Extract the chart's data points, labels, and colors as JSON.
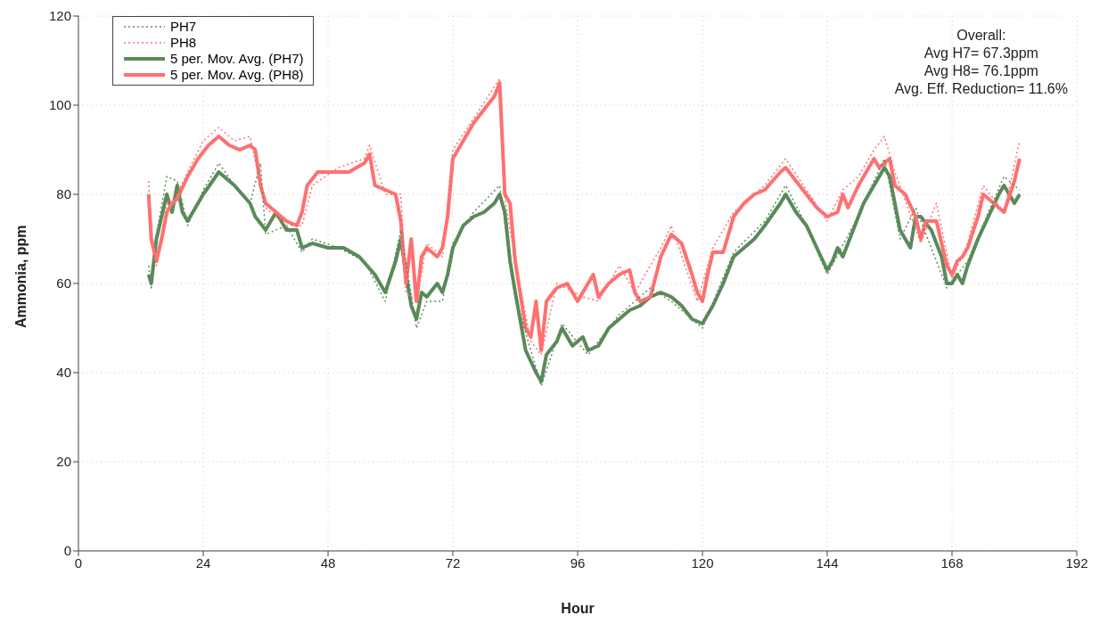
{
  "chart_data": {
    "type": "line",
    "xlabel": "Hour",
    "ylabel": "Ammonia, ppm",
    "xlim": [
      0,
      192
    ],
    "xticks": [
      0,
      24,
      48,
      72,
      96,
      120,
      144,
      168,
      192
    ],
    "ylim": [
      0,
      120
    ],
    "yticks": [
      0,
      20,
      40,
      60,
      80,
      100,
      120
    ],
    "grid": true,
    "legend": "top left",
    "annotations": [
      "Overall:",
      "Avg H7= 67.3ppm",
      "Avg H8= 76.1ppm",
      "Avg. Eff. Reduction= 11.6%"
    ],
    "series": [
      {
        "name": "PH7",
        "color": "#5a8a5a",
        "line_style": "dotted",
        "x": [
          13.5,
          14,
          15,
          17,
          19,
          21,
          24,
          27,
          30,
          33,
          35,
          36,
          40,
          43,
          45,
          50,
          55,
          59,
          62,
          65,
          67,
          70,
          72,
          76,
          81,
          84,
          89,
          93,
          98,
          104,
          110,
          114,
          120,
          126,
          132,
          136,
          140,
          144,
          149,
          155,
          158,
          161,
          167,
          171,
          175,
          178,
          181
        ],
        "values": [
          64,
          59,
          71,
          84,
          83,
          73,
          81,
          87,
          82,
          78,
          87,
          71,
          73,
          67,
          70,
          68,
          65,
          56,
          72,
          50,
          56,
          56,
          69,
          76,
          82,
          57,
          37,
          51,
          44,
          53,
          59,
          56,
          50,
          67,
          74,
          82,
          73,
          62,
          73,
          88,
          70,
          77,
          59,
          65,
          76,
          84,
          81
        ]
      },
      {
        "name": "PH8",
        "color": "#ff7070",
        "line_style": "dotted",
        "x": [
          13.5,
          14,
          15,
          17,
          19,
          21,
          24,
          27,
          30,
          33,
          35,
          36,
          40,
          43,
          45,
          50,
          55,
          56,
          59,
          62,
          63,
          65,
          67,
          70,
          72,
          76,
          81,
          82,
          84,
          87,
          89,
          92,
          97,
          100,
          104,
          107,
          112,
          114,
          119,
          122,
          126,
          132,
          136,
          140,
          144,
          147,
          150,
          153,
          155,
          157,
          162,
          165,
          168,
          171,
          174,
          178,
          181
        ],
        "values": [
          83,
          72,
          64,
          78,
          80,
          85,
          92,
          95,
          92,
          93,
          82,
          77,
          73,
          73,
          82,
          86,
          88,
          91,
          80,
          80,
          58,
          56,
          69,
          66,
          90,
          97,
          106,
          79,
          65,
          47,
          44,
          60,
          57,
          56,
          64,
          58,
          68,
          73,
          56,
          68,
          76,
          82,
          88,
          81,
          74,
          81,
          84,
          90,
          93,
          85,
          69,
          78,
          61,
          69,
          82,
          76,
          92
        ]
      },
      {
        "name": "5 per. Mov. Avg. (PH7)",
        "color": "#5a8a5a",
        "line_style": "solid",
        "x": [
          13.5,
          14,
          15,
          17,
          18,
          19,
          20,
          21,
          24,
          27,
          30,
          33,
          34,
          36,
          38,
          40,
          42,
          43,
          45,
          48,
          51,
          54,
          57,
          59,
          61,
          62,
          63,
          64,
          65,
          66,
          67,
          69,
          70,
          71,
          72,
          74,
          76,
          78,
          80,
          81,
          82,
          83,
          84,
          86,
          88,
          89,
          90,
          92,
          93,
          95,
          97,
          98,
          100,
          102,
          104,
          106,
          108,
          110,
          112,
          114,
          116,
          118,
          120,
          122,
          124,
          126,
          128,
          130,
          132,
          135,
          136,
          138,
          140,
          142,
          144,
          145,
          146,
          147,
          149,
          151,
          153,
          155,
          156,
          157,
          158,
          159,
          160,
          161,
          162,
          164,
          166,
          167,
          168,
          169,
          170,
          171,
          173,
          175,
          177,
          178,
          180,
          181
        ],
        "values": [
          62,
          60,
          70,
          80,
          76,
          82,
          76,
          74,
          80,
          85,
          82,
          78,
          75,
          72,
          76,
          72,
          72,
          68,
          69,
          68,
          68,
          66,
          62,
          58,
          65,
          70,
          62,
          55,
          52,
          58,
          57,
          60,
          58,
          62,
          68,
          73,
          75,
          76,
          78,
          80,
          76,
          65,
          58,
          45,
          40,
          38,
          44,
          47,
          50,
          46,
          48,
          45,
          46,
          50,
          52,
          54,
          55,
          57,
          58,
          57,
          55,
          52,
          51,
          55,
          60,
          66,
          68,
          70,
          73,
          78,
          80,
          76,
          73,
          68,
          63,
          65,
          68,
          66,
          72,
          78,
          82,
          86,
          84,
          78,
          72,
          70,
          68,
          75,
          75,
          72,
          66,
          60,
          60,
          62,
          60,
          64,
          70,
          75,
          80,
          82,
          78,
          80
        ]
      },
      {
        "name": "5 per. Mov. Avg. (PH8)",
        "color": "#ff7070",
        "line_style": "solid",
        "x": [
          13.5,
          14,
          15,
          16,
          17,
          18,
          19,
          21,
          23,
          25,
          27,
          29,
          31,
          33,
          34,
          35,
          36,
          38,
          40,
          42,
          43,
          44,
          46,
          49,
          52,
          55,
          56,
          57,
          59,
          61,
          62,
          63,
          64,
          65,
          66,
          67,
          69,
          70,
          71,
          72,
          74,
          76,
          78,
          80,
          81,
          82,
          83,
          84,
          86,
          87,
          88,
          89,
          90,
          92,
          94,
          96,
          97,
          99,
          100,
          102,
          104,
          106,
          107,
          108,
          110,
          112,
          114,
          116,
          118,
          119,
          120,
          121,
          122,
          124,
          126,
          128,
          130,
          132,
          135,
          136,
          138,
          140,
          142,
          144,
          146,
          147,
          148,
          150,
          152,
          153,
          154,
          156,
          157,
          159,
          161,
          162,
          163,
          165,
          167,
          168,
          169,
          170,
          171,
          173,
          174,
          176,
          178,
          180,
          181
        ],
        "values": [
          80,
          70,
          65,
          70,
          76,
          78,
          79,
          84,
          88,
          91,
          93,
          91,
          90,
          91,
          90,
          82,
          78,
          76,
          74,
          73,
          76,
          82,
          85,
          85,
          85,
          87,
          89,
          82,
          81,
          80,
          74,
          60,
          70,
          56,
          66,
          68,
          66,
          68,
          75,
          88,
          92,
          96,
          99,
          102,
          105,
          80,
          78,
          65,
          50,
          48,
          56,
          45,
          56,
          59,
          60,
          56,
          58,
          62,
          57,
          60,
          62,
          63,
          58,
          56,
          57,
          66,
          71,
          69,
          62,
          58,
          56,
          62,
          67,
          67,
          75,
          78,
          80,
          81,
          85,
          86,
          83,
          80,
          77,
          75,
          76,
          80,
          77,
          82,
          86,
          88,
          86,
          88,
          82,
          80,
          75,
          70,
          74,
          74,
          64,
          62,
          65,
          66,
          68,
          75,
          80,
          78,
          76,
          83,
          88
        ]
      }
    ]
  }
}
